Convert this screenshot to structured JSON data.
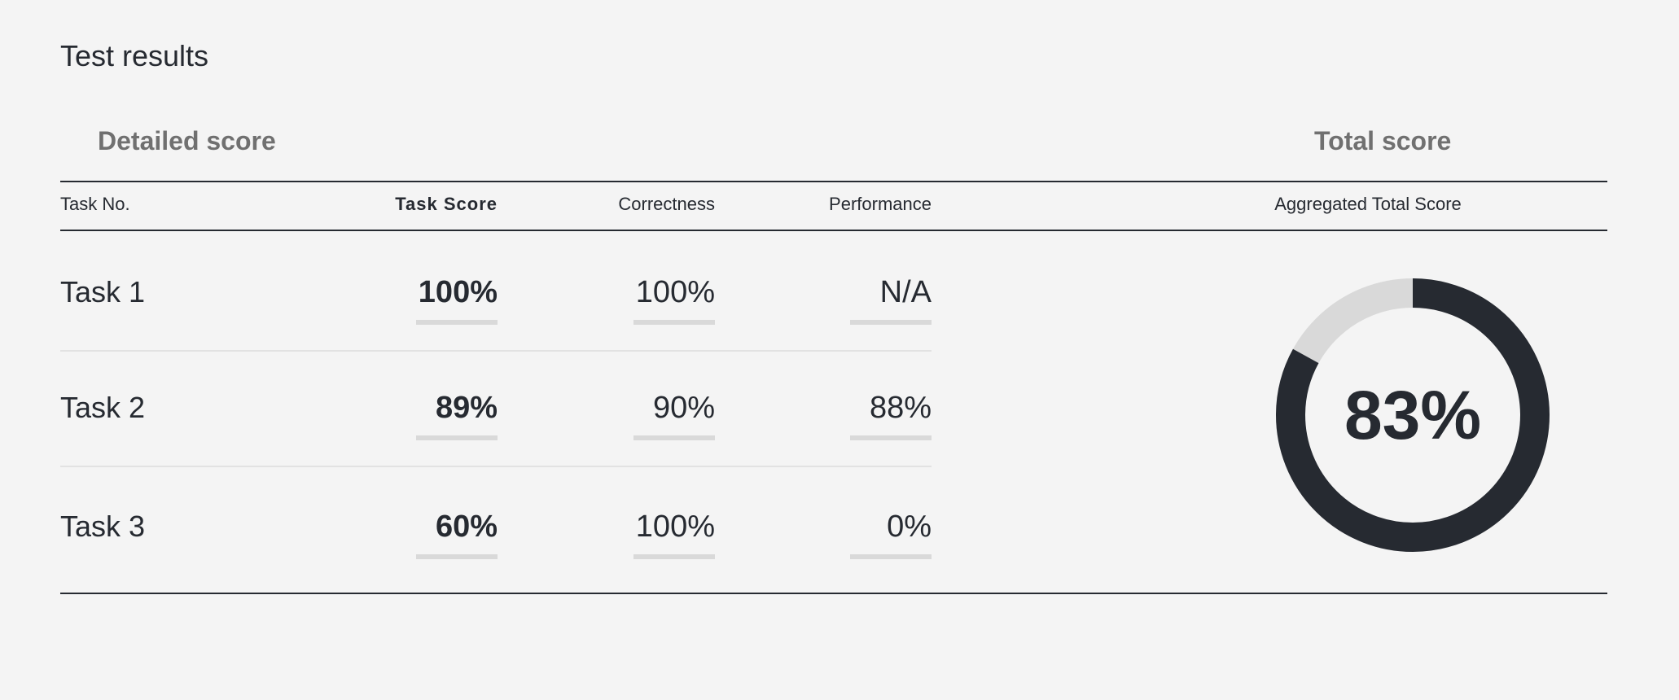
{
  "page": {
    "title": "Test results"
  },
  "sections": {
    "detailed": "Detailed score",
    "total": "Total score"
  },
  "columns": {
    "task_no": "Task No.",
    "task_score": "Task Score",
    "correctness": "Correctness",
    "performance": "Performance",
    "aggregated": "Aggregated Total Score"
  },
  "tasks": [
    {
      "label": "Task 1",
      "task_score": {
        "text": "100%",
        "fraction": 1.0
      },
      "correctness": {
        "text": "100%",
        "fraction": 1.0
      },
      "performance": {
        "text": "N/A",
        "fraction": null
      }
    },
    {
      "label": "Task 2",
      "task_score": {
        "text": "89%",
        "fraction": 0.89
      },
      "correctness": {
        "text": "90%",
        "fraction": 0.9
      },
      "performance": {
        "text": "88%",
        "fraction": 0.88
      }
    },
    {
      "label": "Task 3",
      "task_score": {
        "text": "60%",
        "fraction": 0.6
      },
      "correctness": {
        "text": "100%",
        "fraction": 1.0
      },
      "performance": {
        "text": "0%",
        "fraction": 0.0
      }
    }
  ],
  "total": {
    "text": "83%",
    "fraction": 0.83
  },
  "colors": {
    "dark": "#262a31",
    "track": "#d9d9d9",
    "muted": "#707070",
    "background": "#f4f4f4"
  }
}
